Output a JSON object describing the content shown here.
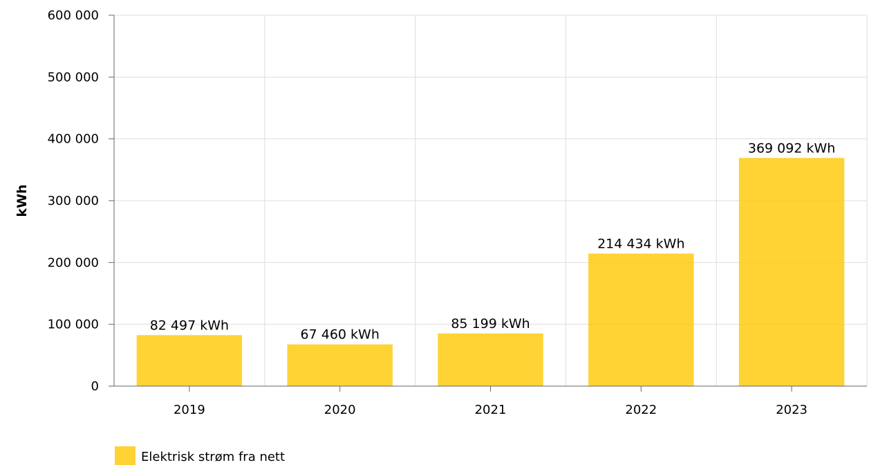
{
  "chart_data": {
    "type": "bar",
    "categories": [
      "2019",
      "2020",
      "2021",
      "2022",
      "2023"
    ],
    "series": [
      {
        "name": "Elektrisk strøm fra nett",
        "values": [
          82497,
          67460,
          85199,
          214434,
          369092
        ],
        "data_labels": [
          "82 497 kWh",
          "67 460 kWh",
          "85 199 kWh",
          "214 434 kWh",
          "369 092 kWh"
        ],
        "color": "#FFC800"
      }
    ],
    "ylabel": "kWh",
    "ylim": [
      0,
      600000
    ],
    "yticks": [
      0,
      100000,
      200000,
      300000,
      400000,
      500000,
      600000
    ],
    "ytick_labels": [
      "0",
      "100 000",
      "200 000",
      "300 000",
      "400 000",
      "500 000",
      "600 000"
    ],
    "grid": true,
    "legend_position": "bottom-left",
    "colors": {
      "grid": "#dddddd",
      "axis": "#666666"
    }
  }
}
